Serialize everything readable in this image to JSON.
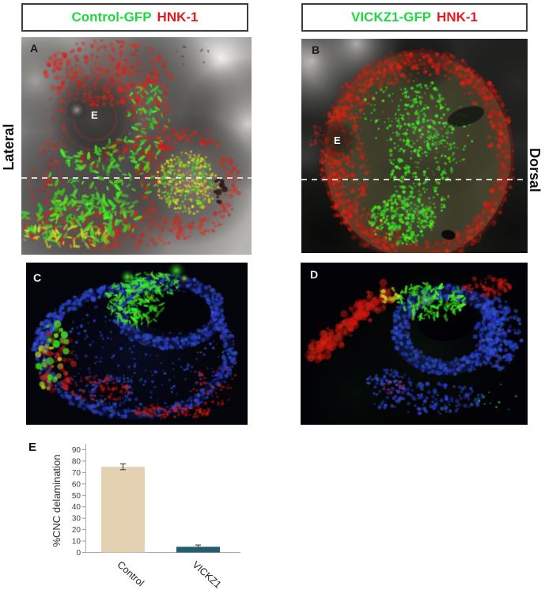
{
  "figure": {
    "header": {
      "left": {
        "gfp_label": "Control-GFP",
        "marker_label": "HNK-1"
      },
      "right": {
        "gfp_label": "VICKZ1-GFP",
        "marker_label": "HNK-1"
      }
    },
    "side_labels": {
      "left": "Lateral",
      "right": "Dorsal"
    },
    "panels": {
      "a": {
        "letter": "A",
        "eye_label": "E"
      },
      "b": {
        "letter": "B",
        "eye_label": "E"
      },
      "c": {
        "letter": "C"
      },
      "d": {
        "letter": "D"
      },
      "e": {
        "letter": "E"
      }
    },
    "colors": {
      "gfp_green": "#1fd83f",
      "hnk1_red": "#e01c1c",
      "control_bar": "#e3d1b1",
      "vickz1_bar": "#235e6e"
    }
  },
  "chart_data": {
    "type": "bar",
    "title": "",
    "categories": [
      "Control",
      "VICKZ1"
    ],
    "values": [
      75,
      5
    ],
    "errors": [
      2.5,
      1.5
    ],
    "bar_colors": [
      "#e3d1b1",
      "#235e6e"
    ],
    "xlabel": "",
    "ylabel": "%CNC delamination",
    "ylim": [
      0,
      90
    ],
    "ytick_step": 10,
    "grid": false,
    "legend_position": "none"
  }
}
